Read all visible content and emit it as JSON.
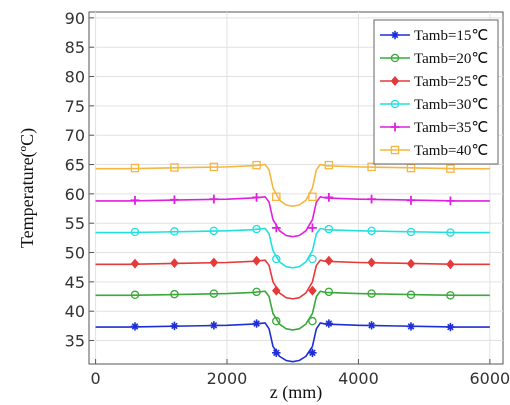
{
  "chart_data": {
    "type": "line",
    "xlabel": "z (mm)",
    "ylabel": "Temperature(ºC)",
    "xlim": [
      -100,
      6200
    ],
    "ylim": [
      31,
      91
    ],
    "xticks": [
      0,
      2000,
      4000,
      6000
    ],
    "xtick_labels": [
      "0",
      "2000",
      "4000",
      "6000"
    ],
    "yticks": [
      35,
      40,
      45,
      50,
      55,
      60,
      65,
      70,
      75,
      80,
      85,
      90
    ],
    "ytick_labels": [
      "35",
      "40",
      "45",
      "50",
      "55",
      "60",
      "65",
      "70",
      "75",
      "80",
      "85",
      "90"
    ],
    "grid": true,
    "legend_position": "top-right",
    "x_common": [
      0,
      500,
      1000,
      1500,
      2000,
      2400,
      2580,
      2640,
      2700,
      2800,
      2900,
      3000,
      3100,
      3200,
      3300,
      3360,
      3420,
      3500,
      4000,
      4500,
      5000,
      5500,
      6000
    ],
    "series": [
      {
        "name": "Tamb=15℃",
        "color": "#1f2fd6",
        "marker": "star",
        "values": [
          37.3,
          37.3,
          37.4,
          37.5,
          37.6,
          37.8,
          38.0,
          37.0,
          34.0,
          32.3,
          31.6,
          31.4,
          31.6,
          32.3,
          34.0,
          37.0,
          38.0,
          37.8,
          37.6,
          37.5,
          37.4,
          37.3,
          37.3
        ],
        "marker_points": [
          [
            600,
            37.4
          ],
          [
            1200,
            37.5
          ],
          [
            1800,
            37.6
          ],
          [
            2450,
            37.9
          ],
          [
            2750,
            32.9
          ],
          [
            3300,
            32.9
          ],
          [
            3550,
            37.9
          ],
          [
            4200,
            37.6
          ],
          [
            4800,
            37.4
          ],
          [
            5400,
            37.3
          ]
        ]
      },
      {
        "name": "Tamb=20℃",
        "color": "#3aa83a",
        "marker": "circle",
        "values": [
          42.7,
          42.7,
          42.8,
          42.9,
          43.0,
          43.2,
          43.4,
          42.5,
          39.6,
          37.8,
          37.0,
          36.8,
          37.0,
          37.8,
          39.6,
          42.5,
          43.4,
          43.2,
          43.0,
          42.9,
          42.8,
          42.7,
          42.7
        ],
        "marker_points": [
          [
            600,
            42.8
          ],
          [
            1200,
            42.9
          ],
          [
            1800,
            43.0
          ],
          [
            2450,
            43.3
          ],
          [
            2750,
            38.3
          ],
          [
            3300,
            38.3
          ],
          [
            3550,
            43.3
          ],
          [
            4200,
            43.0
          ],
          [
            4800,
            42.8
          ],
          [
            5400,
            42.7
          ]
        ]
      },
      {
        "name": "Tamb=25℃",
        "color": "#e53a3a",
        "marker": "diamond",
        "values": [
          48.0,
          48.0,
          48.1,
          48.2,
          48.3,
          48.5,
          48.7,
          47.8,
          45.0,
          43.1,
          42.3,
          42.1,
          42.3,
          43.1,
          45.0,
          47.8,
          48.7,
          48.5,
          48.3,
          48.2,
          48.1,
          48.0,
          48.0
        ],
        "marker_points": [
          [
            600,
            48.1
          ],
          [
            1200,
            48.2
          ],
          [
            1800,
            48.3
          ],
          [
            2450,
            48.6
          ],
          [
            2750,
            43.5
          ],
          [
            3300,
            43.5
          ],
          [
            3550,
            48.6
          ],
          [
            4200,
            48.3
          ],
          [
            4800,
            48.1
          ],
          [
            5400,
            48.0
          ]
        ]
      },
      {
        "name": "Tamb=30℃",
        "color": "#22e0e0",
        "marker": "circle",
        "values": [
          53.4,
          53.4,
          53.5,
          53.6,
          53.7,
          53.9,
          54.1,
          53.2,
          50.3,
          48.4,
          47.6,
          47.4,
          47.6,
          48.4,
          50.3,
          53.2,
          54.1,
          53.9,
          53.7,
          53.6,
          53.5,
          53.4,
          53.4
        ],
        "marker_points": [
          [
            600,
            53.5
          ],
          [
            1200,
            53.6
          ],
          [
            1800,
            53.7
          ],
          [
            2450,
            54.0
          ],
          [
            2750,
            48.9
          ],
          [
            3300,
            48.9
          ],
          [
            3550,
            54.0
          ],
          [
            4200,
            53.7
          ],
          [
            4800,
            53.5
          ],
          [
            5400,
            53.4
          ]
        ]
      },
      {
        "name": "Tamb=35℃",
        "color": "#e020e0",
        "marker": "plus",
        "values": [
          58.8,
          58.8,
          58.9,
          59.0,
          59.1,
          59.3,
          59.5,
          58.6,
          55.6,
          53.7,
          52.9,
          52.7,
          52.9,
          53.7,
          55.6,
          58.6,
          59.5,
          59.3,
          59.1,
          59.0,
          58.9,
          58.8,
          58.8
        ],
        "marker_points": [
          [
            600,
            58.9
          ],
          [
            1200,
            59.0
          ],
          [
            1800,
            59.1
          ],
          [
            2450,
            59.4
          ],
          [
            2750,
            54.2
          ],
          [
            3300,
            54.2
          ],
          [
            3550,
            59.4
          ],
          [
            4200,
            59.1
          ],
          [
            4800,
            58.9
          ],
          [
            5400,
            58.8
          ]
        ]
      },
      {
        "name": "Tamb=40℃",
        "color": "#f5b642",
        "marker": "square",
        "values": [
          64.3,
          64.3,
          64.4,
          64.5,
          64.6,
          64.8,
          65.0,
          64.1,
          61.0,
          58.9,
          58.1,
          57.9,
          58.1,
          58.9,
          61.0,
          64.1,
          65.0,
          64.8,
          64.6,
          64.5,
          64.4,
          64.3,
          64.3
        ],
        "marker_points": [
          [
            600,
            64.4
          ],
          [
            1200,
            64.5
          ],
          [
            1800,
            64.6
          ],
          [
            2450,
            64.9
          ],
          [
            2750,
            59.5
          ],
          [
            3300,
            59.5
          ],
          [
            3550,
            64.9
          ],
          [
            4200,
            64.6
          ],
          [
            4800,
            64.4
          ],
          [
            5400,
            64.3
          ]
        ]
      }
    ]
  }
}
